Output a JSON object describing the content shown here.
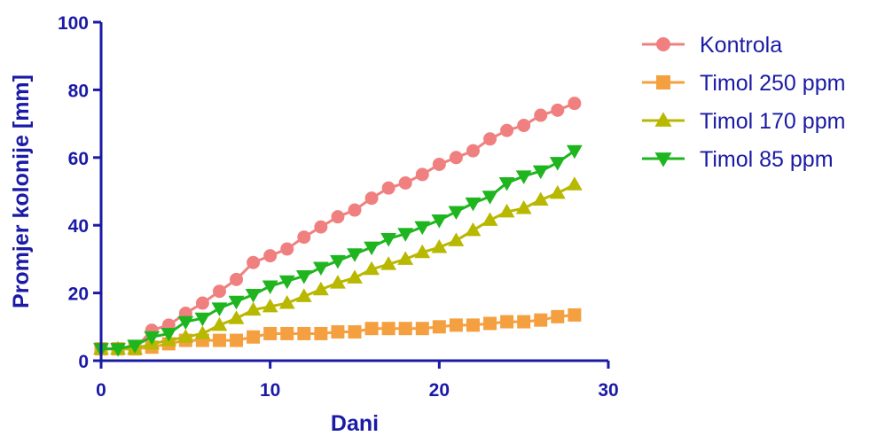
{
  "chart_data": {
    "type": "line",
    "title": "",
    "xlabel": "Dani",
    "ylabel": "Promjer kolonije [mm]",
    "xlim": [
      0,
      30
    ],
    "ylim": [
      0,
      100
    ],
    "xticks": [
      0,
      10,
      20,
      30
    ],
    "yticks": [
      0,
      20,
      40,
      60,
      80,
      100
    ],
    "xtick_labels": [
      "0",
      "10",
      "20",
      "30"
    ],
    "ytick_labels": [
      "0",
      "20",
      "40",
      "60",
      "80",
      "100"
    ],
    "grid": false,
    "legend_position": "right",
    "axis_color": "#1a1aa6",
    "series": [
      {
        "name": "Kontrola",
        "color": "#f08080",
        "marker": "circle",
        "x": [
          0,
          1,
          2,
          3,
          4,
          5,
          6,
          7,
          8,
          9,
          10,
          11,
          12,
          13,
          14,
          15,
          16,
          17,
          18,
          19,
          20,
          21,
          22,
          23,
          24,
          25,
          26,
          27,
          28
        ],
        "y": [
          3.5,
          3.5,
          3.5,
          9,
          10.5,
          14,
          17,
          20.5,
          24,
          29,
          31,
          33,
          36.5,
          39.5,
          42.5,
          44.5,
          48,
          51,
          52.5,
          55,
          58,
          60,
          62,
          65.5,
          68,
          69.5,
          72.5,
          74,
          76
        ]
      },
      {
        "name": "Timol 250 ppm",
        "color": "#f5a040",
        "marker": "square",
        "x": [
          0,
          1,
          2,
          3,
          4,
          5,
          6,
          7,
          8,
          9,
          10,
          11,
          12,
          13,
          14,
          15,
          16,
          17,
          18,
          19,
          20,
          21,
          22,
          23,
          24,
          25,
          26,
          27,
          28
        ],
        "y": [
          3.5,
          3.5,
          3.5,
          4,
          5,
          6,
          6,
          6,
          6,
          7,
          8,
          8,
          8,
          8,
          8.5,
          8.5,
          9.5,
          9.5,
          9.5,
          9.5,
          10,
          10.5,
          10.5,
          11,
          11.5,
          11.5,
          12,
          13,
          13.5
        ]
      },
      {
        "name": "Timol 170 ppm",
        "color": "#b8b800",
        "marker": "triangle-up",
        "x": [
          0,
          1,
          2,
          3,
          4,
          5,
          6,
          7,
          8,
          9,
          10,
          11,
          12,
          13,
          14,
          15,
          16,
          17,
          18,
          19,
          20,
          21,
          22,
          23,
          24,
          25,
          26,
          27,
          28
        ],
        "y": [
          3.5,
          3.5,
          3.5,
          5,
          6,
          7,
          8,
          10.5,
          12.5,
          15,
          16,
          17,
          19,
          21,
          23,
          24.5,
          27,
          28.5,
          30,
          32,
          33.5,
          35.5,
          38.5,
          41.5,
          44,
          45,
          47.5,
          49.5,
          52
        ]
      },
      {
        "name": "Timol 85 ppm",
        "color": "#1fb51f",
        "marker": "triangle-down",
        "x": [
          0,
          1,
          2,
          3,
          4,
          5,
          6,
          7,
          8,
          9,
          10,
          11,
          12,
          13,
          14,
          15,
          16,
          17,
          18,
          19,
          20,
          21,
          22,
          23,
          24,
          25,
          26,
          27,
          28
        ],
        "y": [
          3.5,
          3.5,
          4.5,
          7,
          8,
          11.5,
          12.5,
          15.5,
          17.5,
          19.5,
          22,
          23.5,
          25,
          27.5,
          29.5,
          31.5,
          33.5,
          36,
          37.5,
          39.5,
          41.5,
          44,
          46.5,
          48.5,
          52.5,
          54.5,
          56,
          58.5,
          62
        ]
      }
    ]
  }
}
